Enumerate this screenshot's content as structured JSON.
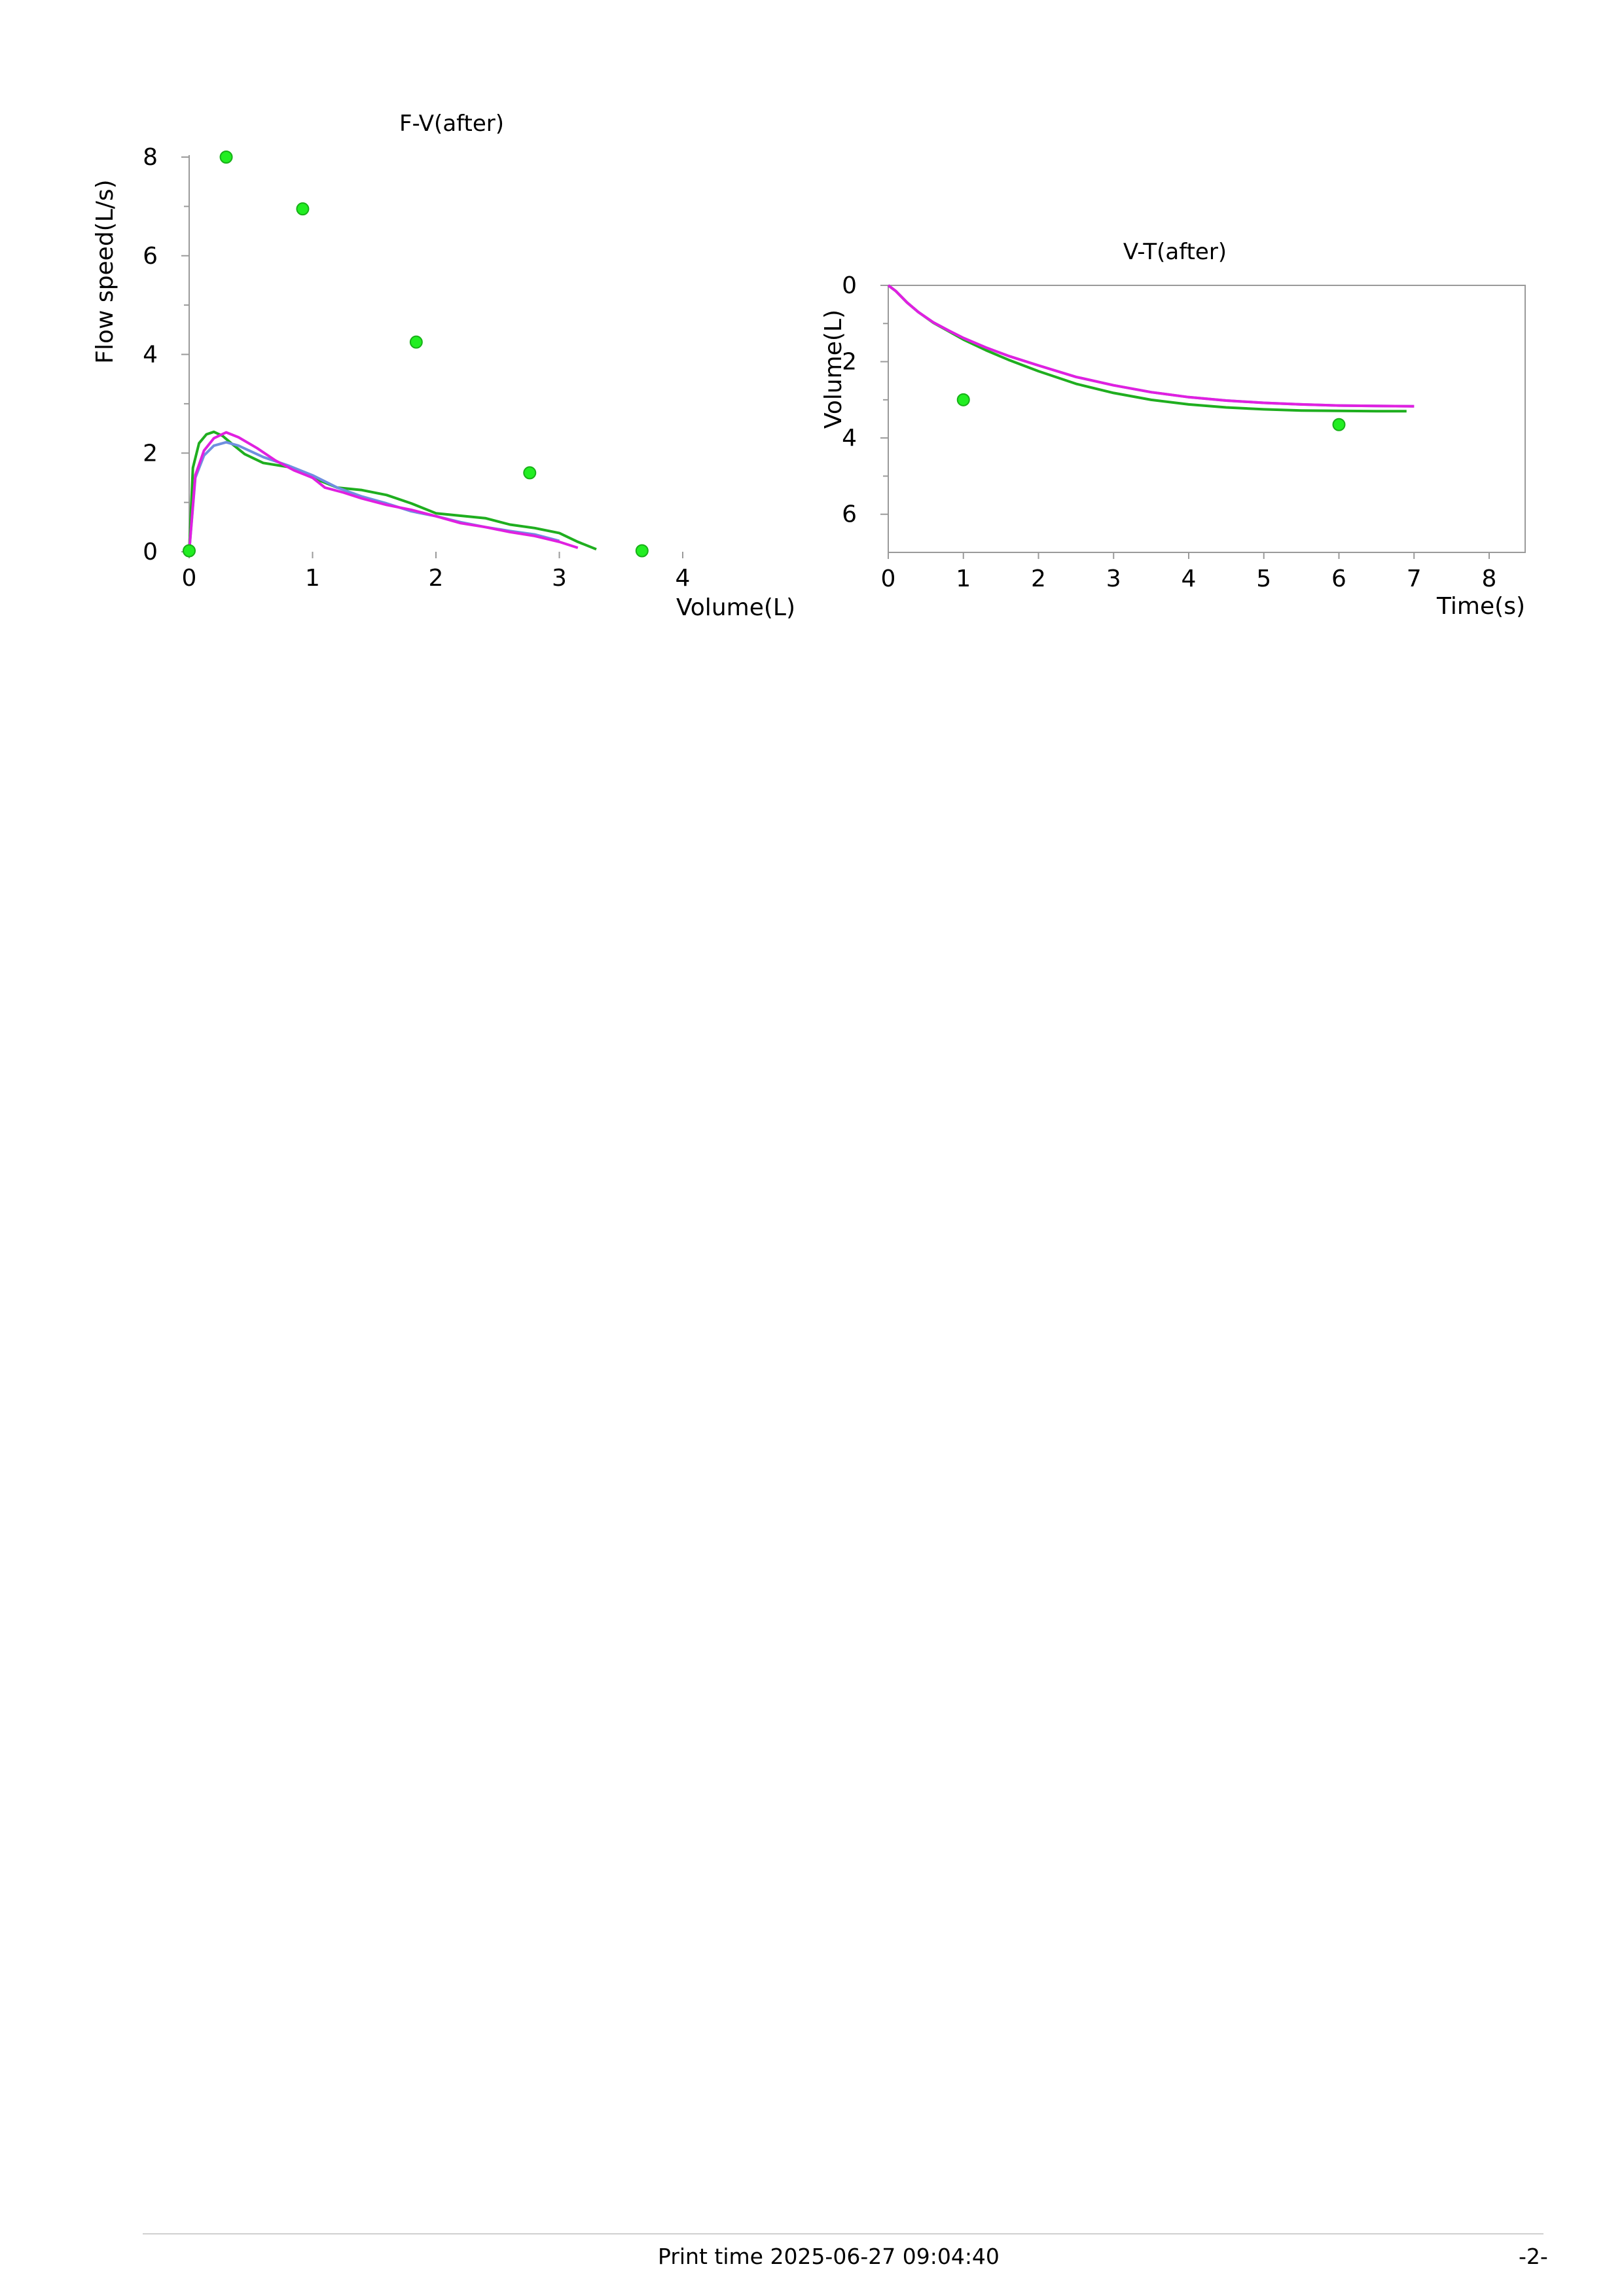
{
  "chart_data": [
    {
      "type": "line",
      "title": "F-V(after)",
      "xlabel": "Volume(L)",
      "ylabel": "Flow speed(L/s)",
      "xlim": [
        0,
        4
      ],
      "ylim": [
        0,
        8
      ],
      "x_ticks": [
        0,
        1,
        2,
        3,
        4
      ],
      "y_ticks": [
        0,
        2,
        4,
        6,
        8
      ],
      "grid": false,
      "series": [
        {
          "color": "#1fae1f",
          "x": [
            0,
            0.03,
            0.08,
            0.14,
            0.2,
            0.27,
            0.35,
            0.45,
            0.6,
            0.8,
            1.0,
            1.2,
            1.4,
            1.6,
            1.8,
            2.0,
            2.2,
            2.4,
            2.6,
            2.8,
            3.0,
            3.15,
            3.3
          ],
          "y": [
            0,
            1.7,
            2.2,
            2.38,
            2.43,
            2.35,
            2.18,
            1.98,
            1.8,
            1.72,
            1.5,
            1.3,
            1.25,
            1.15,
            0.98,
            0.78,
            0.73,
            0.68,
            0.55,
            0.48,
            0.38,
            0.2,
            0.05
          ]
        },
        {
          "color": "#6f8fe0",
          "x": [
            0,
            0.05,
            0.12,
            0.2,
            0.3,
            0.4,
            0.6,
            0.8,
            1.0,
            1.2,
            1.4,
            1.6,
            1.8,
            2.0,
            2.2,
            2.4,
            2.6,
            2.8,
            3.0
          ],
          "y": [
            0,
            1.5,
            1.95,
            2.15,
            2.22,
            2.15,
            1.92,
            1.75,
            1.55,
            1.3,
            1.12,
            0.98,
            0.82,
            0.72,
            0.6,
            0.5,
            0.42,
            0.35,
            0.22
          ]
        },
        {
          "color": "#e020e0",
          "x": [
            0,
            0.05,
            0.12,
            0.2,
            0.3,
            0.4,
            0.55,
            0.7,
            0.85,
            1.0,
            1.1,
            1.25,
            1.4,
            1.6,
            1.8,
            2.0,
            2.2,
            2.4,
            2.6,
            2.8,
            3.0,
            3.15
          ],
          "y": [
            0,
            1.55,
            2.05,
            2.3,
            2.42,
            2.32,
            2.1,
            1.85,
            1.65,
            1.5,
            1.3,
            1.2,
            1.08,
            0.95,
            0.85,
            0.72,
            0.58,
            0.5,
            0.4,
            0.32,
            0.2,
            0.08
          ]
        }
      ],
      "points": {
        "color": "#22ee22",
        "x": [
          0.3,
          0.92,
          1.84,
          2.76,
          3.67,
          0
        ],
        "y": [
          8.0,
          6.95,
          4.25,
          1.6,
          0.02,
          0.02
        ]
      }
    },
    {
      "type": "line",
      "title": "V-T(after)",
      "xlabel": "Time(s)",
      "ylabel": "Volume(L)",
      "xlim": [
        0,
        8
      ],
      "ylim": [
        0,
        7
      ],
      "y_inverted": true,
      "x_ticks": [
        0,
        1,
        2,
        3,
        4,
        5,
        6,
        7,
        8
      ],
      "y_ticks": [
        0,
        2,
        4,
        6
      ],
      "grid": false,
      "series": [
        {
          "color": "#1fae1f",
          "x": [
            0,
            0.1,
            0.25,
            0.4,
            0.6,
            0.8,
            1.0,
            1.3,
            1.6,
            2.0,
            2.5,
            3.0,
            3.5,
            4.0,
            4.5,
            5.0,
            5.5,
            6.0,
            6.5,
            6.9
          ],
          "y": [
            0,
            0.15,
            0.45,
            0.7,
            0.98,
            1.2,
            1.42,
            1.7,
            1.95,
            2.25,
            2.58,
            2.82,
            3.0,
            3.12,
            3.2,
            3.25,
            3.28,
            3.29,
            3.3,
            3.3
          ]
        },
        {
          "color": "#6f8fe0",
          "x": [
            0,
            0.1,
            0.25,
            0.4,
            0.6,
            0.8,
            1.0,
            1.3,
            1.6,
            2.0,
            2.5,
            3.0,
            3.5,
            4.0,
            4.5,
            5.0,
            5.5,
            6.0,
            6.5,
            7.0
          ],
          "y": [
            0,
            0.15,
            0.45,
            0.7,
            0.97,
            1.18,
            1.38,
            1.63,
            1.85,
            2.1,
            2.4,
            2.62,
            2.8,
            2.93,
            3.02,
            3.08,
            3.12,
            3.15,
            3.16,
            3.17
          ]
        },
        {
          "color": "#e020e0",
          "x": [
            0,
            0.1,
            0.25,
            0.4,
            0.6,
            0.8,
            1.0,
            1.3,
            1.6,
            2.0,
            2.5,
            3.0,
            3.5,
            4.0,
            4.5,
            5.0,
            5.5,
            6.0,
            6.5,
            7.0
          ],
          "y": [
            0,
            0.15,
            0.45,
            0.7,
            0.97,
            1.18,
            1.38,
            1.63,
            1.85,
            2.1,
            2.4,
            2.62,
            2.8,
            2.93,
            3.02,
            3.08,
            3.12,
            3.15,
            3.16,
            3.17
          ]
        }
      ],
      "points": {
        "color": "#22ee22",
        "x": [
          1,
          6
        ],
        "y": [
          3.0,
          3.65
        ]
      }
    }
  ],
  "footer": {
    "print_time": "Print time 2025-06-27 09:04:40",
    "page_number": "-2-"
  }
}
